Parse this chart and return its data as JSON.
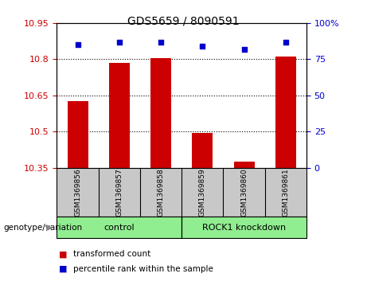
{
  "title": "GDS5659 / 8090591",
  "samples": [
    "GSM1369856",
    "GSM1369857",
    "GSM1369858",
    "GSM1369859",
    "GSM1369860",
    "GSM1369861"
  ],
  "bar_values": [
    10.625,
    10.785,
    10.805,
    10.495,
    10.375,
    10.81
  ],
  "percentile_values": [
    85,
    87,
    87,
    84,
    82,
    87
  ],
  "bar_bottom": 10.35,
  "ylim_left": [
    10.35,
    10.95
  ],
  "ylim_right": [
    0,
    100
  ],
  "yticks_left": [
    10.35,
    10.5,
    10.65,
    10.8,
    10.95
  ],
  "ytick_labels_left": [
    "10.35",
    "10.5",
    "10.65",
    "10.8",
    "10.95"
  ],
  "yticks_right": [
    0,
    25,
    50,
    75,
    100
  ],
  "ytick_labels_right": [
    "0",
    "25",
    "50",
    "75",
    "100%"
  ],
  "bar_color": "#cc0000",
  "scatter_color": "#0000cc",
  "groups": [
    {
      "label": "control",
      "indices": [
        0,
        1,
        2
      ],
      "color": "#90ee90"
    },
    {
      "label": "ROCK1 knockdown",
      "indices": [
        3,
        4,
        5
      ],
      "color": "#90ee90"
    }
  ],
  "genotype_label": "genotype/variation",
  "legend_items": [
    {
      "label": "transformed count",
      "color": "#cc0000"
    },
    {
      "label": "percentile rank within the sample",
      "color": "#0000cc"
    }
  ],
  "tick_area_bg": "#c8c8c8",
  "bar_width": 0.5,
  "figsize": [
    4.61,
    3.63
  ],
  "dpi": 100,
  "left_axis_color": "#cc0000",
  "right_axis_color": "#0000cc"
}
